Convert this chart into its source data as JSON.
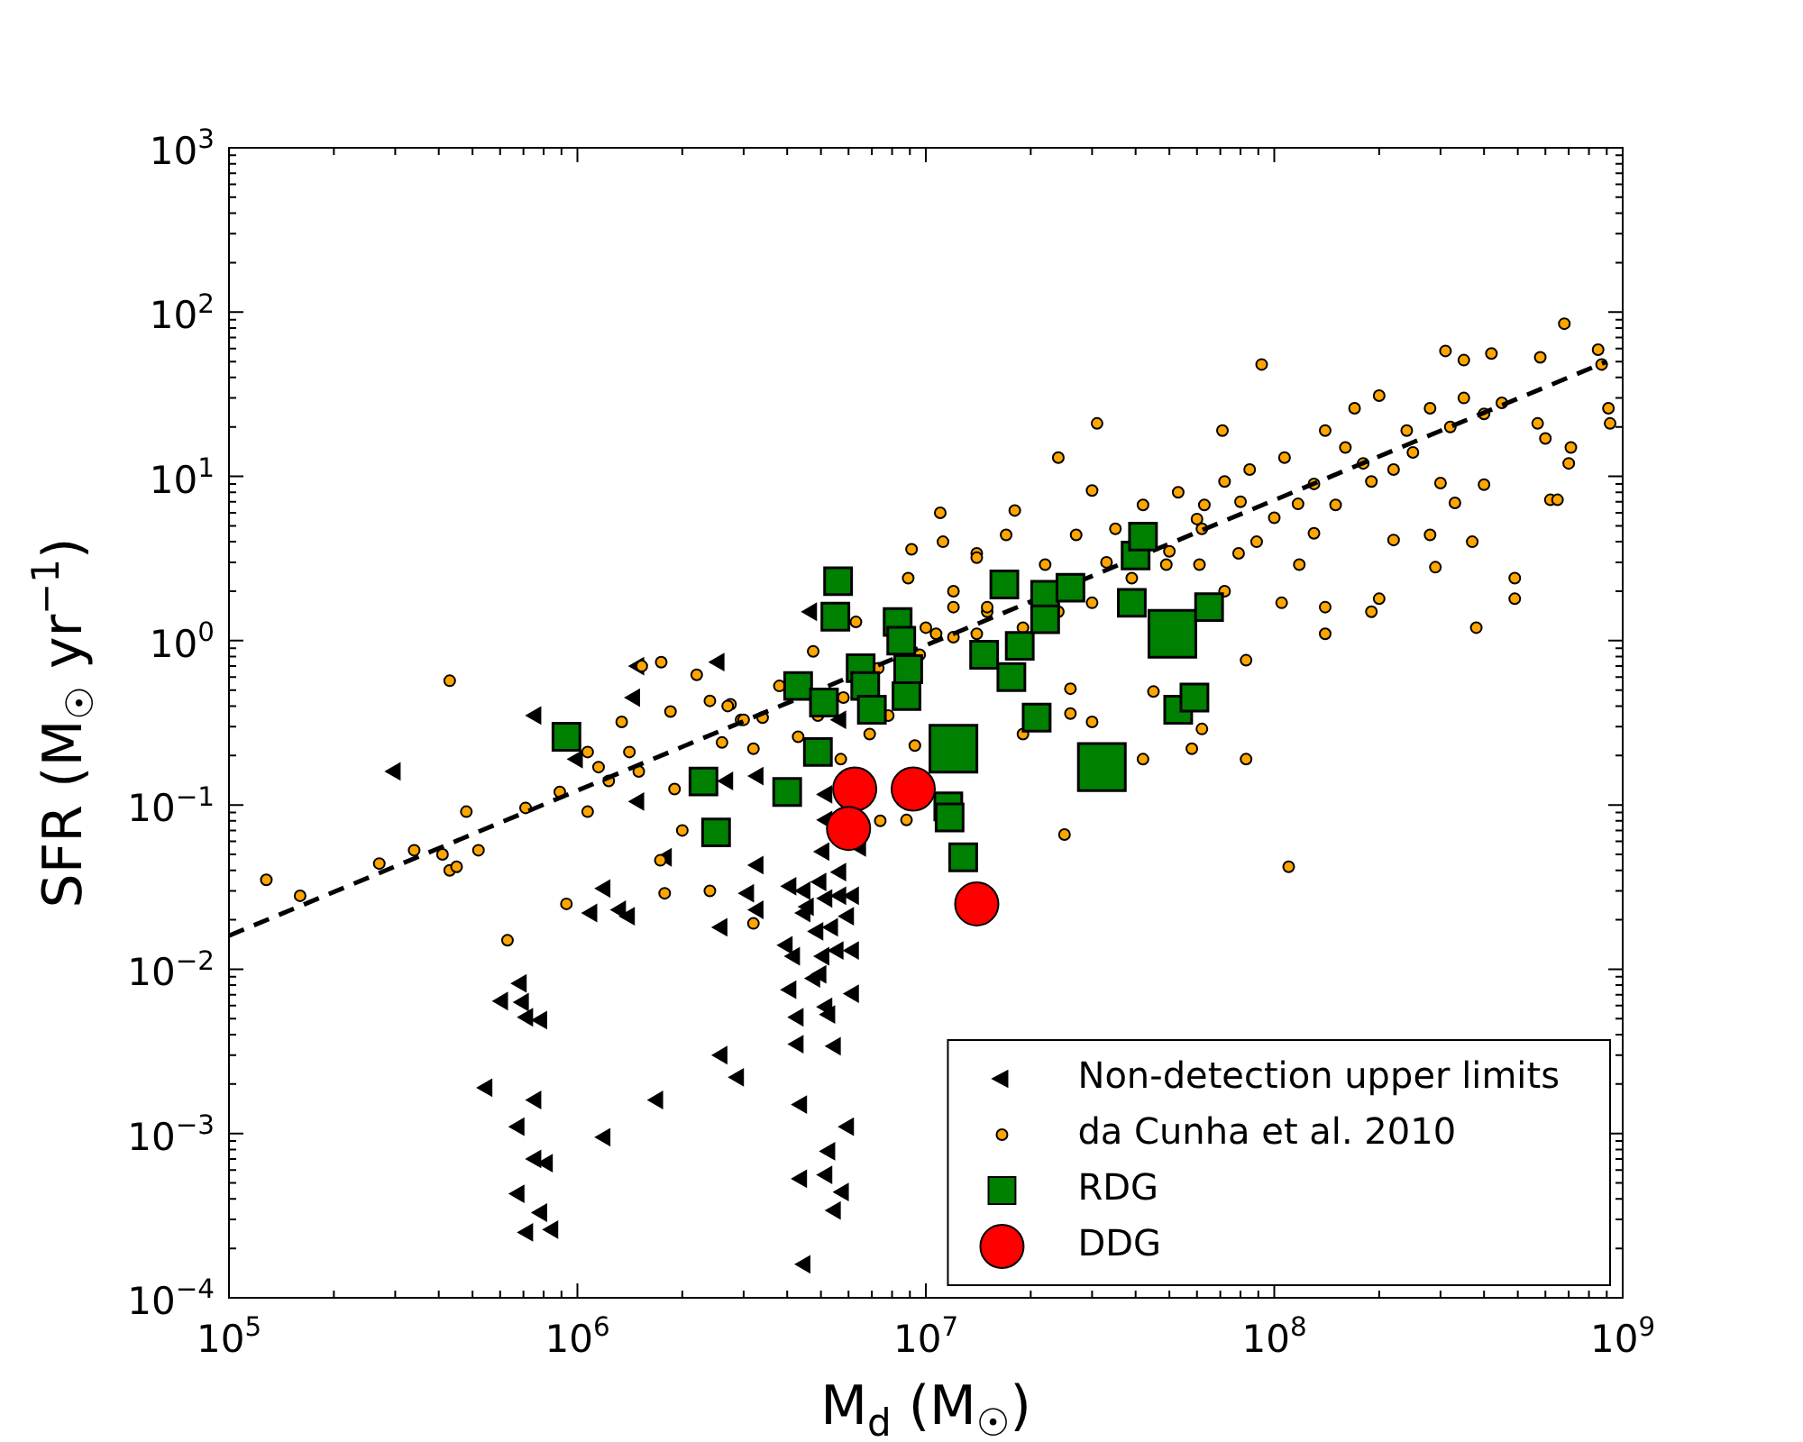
{
  "chart_data": {
    "type": "scatter",
    "xlabel": "M$_{d}$ (M$_{☉}$)",
    "ylabel": "SFR (M$_{☉}$ yr$^{−1}$)",
    "log": "xy",
    "grid": false,
    "legend": "bottom right",
    "xlim": [
      100000.0,
      1000000000.0
    ],
    "ylim": [
      0.0001,
      1000.0
    ],
    "xticks": [
      {
        "value": 100000.0,
        "label": "10$^{5}$"
      },
      {
        "value": 200000.0,
        "label": null
      },
      {
        "value": 300000.0,
        "label": null
      },
      {
        "value": 400000.0,
        "label": null
      },
      {
        "value": 500000.0,
        "label": null
      },
      {
        "value": 600000.0,
        "label": null
      },
      {
        "value": 700000.0,
        "label": null
      },
      {
        "value": 800000.0,
        "label": null
      },
      {
        "value": 900000.0,
        "label": null
      },
      {
        "value": 1000000.0,
        "label": "10$^{6}$"
      },
      {
        "value": 2000000.0,
        "label": null
      },
      {
        "value": 3000000.0,
        "label": null
      },
      {
        "value": 4000000.0,
        "label": null
      },
      {
        "value": 5000000.0,
        "label": null
      },
      {
        "value": 6000000.0,
        "label": null
      },
      {
        "value": 7000000.0,
        "label": null
      },
      {
        "value": 8000000.0,
        "label": null
      },
      {
        "value": 9000000.0,
        "label": null
      },
      {
        "value": 10000000.0,
        "label": "10$^{7}$"
      },
      {
        "value": 20000000.0,
        "label": null
      },
      {
        "value": 30000000.0,
        "label": null
      },
      {
        "value": 40000000.0,
        "label": null
      },
      {
        "value": 50000000.0,
        "label": null
      },
      {
        "value": 60000000.0,
        "label": null
      },
      {
        "value": 70000000.0,
        "label": null
      },
      {
        "value": 80000000.0,
        "label": null
      },
      {
        "value": 90000000.0,
        "label": null
      },
      {
        "value": 100000000.0,
        "label": "10$^{8}$"
      },
      {
        "value": 200000000.0,
        "label": null
      },
      {
        "value": 300000000.0,
        "label": null
      },
      {
        "value": 400000000.0,
        "label": null
      },
      {
        "value": 500000000.0,
        "label": null
      },
      {
        "value": 600000000.0,
        "label": null
      },
      {
        "value": 700000000.0,
        "label": null
      },
      {
        "value": 800000000.0,
        "label": null
      },
      {
        "value": 900000000.0,
        "label": null
      },
      {
        "value": 1000000000.0,
        "label": "10$^{9}$"
      }
    ],
    "yticks": [
      {
        "value": 0.0001,
        "label": "10$^{−4}$"
      },
      {
        "value": 0.0002,
        "label": null
      },
      {
        "value": 0.0003,
        "label": null
      },
      {
        "value": 0.0004,
        "label": null
      },
      {
        "value": 0.0005,
        "label": null
      },
      {
        "value": 0.0006,
        "label": null
      },
      {
        "value": 0.0007,
        "label": null
      },
      {
        "value": 0.0008,
        "label": null
      },
      {
        "value": 0.0009,
        "label": null
      },
      {
        "value": 0.001,
        "label": "10$^{−3}$"
      },
      {
        "value": 0.002,
        "label": null
      },
      {
        "value": 0.003,
        "label": null
      },
      {
        "value": 0.004,
        "label": null
      },
      {
        "value": 0.005,
        "label": null
      },
      {
        "value": 0.006,
        "label": null
      },
      {
        "value": 0.007,
        "label": null
      },
      {
        "value": 0.008,
        "label": null
      },
      {
        "value": 0.009,
        "label": null
      },
      {
        "value": 0.01,
        "label": "10$^{−2}$"
      },
      {
        "value": 0.02,
        "label": null
      },
      {
        "value": 0.03,
        "label": null
      },
      {
        "value": 0.04,
        "label": null
      },
      {
        "value": 0.05,
        "label": null
      },
      {
        "value": 0.06,
        "label": null
      },
      {
        "value": 0.07,
        "label": null
      },
      {
        "value": 0.08,
        "label": null
      },
      {
        "value": 0.09,
        "label": null
      },
      {
        "value": 0.1,
        "label": "10$^{−1}$"
      },
      {
        "value": 0.2,
        "label": null
      },
      {
        "value": 0.3,
        "label": null
      },
      {
        "value": 0.4,
        "label": null
      },
      {
        "value": 0.5,
        "label": null
      },
      {
        "value": 0.6,
        "label": null
      },
      {
        "value": 0.7,
        "label": null
      },
      {
        "value": 0.8,
        "label": null
      },
      {
        "value": 0.9,
        "label": null
      },
      {
        "value": 1,
        "label": "10$^{0}$"
      },
      {
        "value": 2,
        "label": null
      },
      {
        "value": 3,
        "label": null
      },
      {
        "value": 4,
        "label": null
      },
      {
        "value": 5,
        "label": null
      },
      {
        "value": 6,
        "label": null
      },
      {
        "value": 7,
        "label": null
      },
      {
        "value": 8,
        "label": null
      },
      {
        "value": 9,
        "label": null
      },
      {
        "value": 10,
        "label": "10$^{1}$"
      },
      {
        "value": 20,
        "label": null
      },
      {
        "value": 30,
        "label": null
      },
      {
        "value": 40,
        "label": null
      },
      {
        "value": 50,
        "label": null
      },
      {
        "value": 60,
        "label": null
      },
      {
        "value": 70,
        "label": null
      },
      {
        "value": 80,
        "label": null
      },
      {
        "value": 90,
        "label": null
      },
      {
        "value": 100,
        "label": "10$^{2}$"
      },
      {
        "value": 200,
        "label": null
      },
      {
        "value": 300,
        "label": null
      },
      {
        "value": 400,
        "label": null
      },
      {
        "value": 500,
        "label": null
      },
      {
        "value": 600,
        "label": null
      },
      {
        "value": 700,
        "label": null
      },
      {
        "value": 800,
        "label": null
      },
      {
        "value": 900,
        "label": null
      },
      {
        "value": 1000,
        "label": "10$^{3}$"
      }
    ],
    "series": [
      {
        "name": "Non-detection upper limits",
        "marker": "triangle",
        "color": "#000000",
        "x": [
          300000.0,
          760000.0,
          2550000.0,
          1460000.0,
          1500000.0,
          4700000.0,
          1000000.0,
          1500000.0,
          2700000.0,
          3300000.0,
          1800000.0,
          1200000.0,
          1330000.0,
          1410000.0,
          1100000.0,
          3300000.0,
          3100000.0,
          3300000.0,
          2600000.0,
          4100000.0,
          4500000.0,
          5000000.0,
          5700000.0,
          5200000.0,
          5700000.0,
          6200000.0,
          4600000.0,
          4500000.0,
          6000000.0,
          4900000.0,
          5400000.0,
          4000000.0,
          4200000.0,
          5100000.0,
          5600000.0,
          6200000.0,
          5000000.0,
          4800000.0,
          4100000.0,
          6200000.0,
          5200000.0,
          4300000.0,
          5300000.0,
          4300000.0,
          5500000.0,
          2600000.0,
          2900000.0,
          690000.0,
          610000.0,
          700000.0,
          720000.0,
          790000.0,
          550000.0,
          760000.0,
          1700000.0,
          4400000.0,
          6000000.0,
          1200000.0,
          680000.0,
          760000.0,
          820000.0,
          5300000.0,
          5200000.0,
          4400000.0,
          5800000.0,
          680000.0,
          790000.0,
          5500000.0,
          720000.0,
          850000.0,
          4500000.0,
          5700000.0,
          6500000.0,
          5200000.0,
          5100000.0,
          5200000.0
        ],
        "values": [
          0.16,
          0.35,
          0.74,
          0.45,
          0.7,
          1.5,
          0.19,
          0.105,
          0.14,
          0.15,
          0.048,
          0.031,
          0.023,
          0.021,
          0.022,
          0.043,
          0.029,
          0.023,
          0.018,
          0.032,
          0.03,
          0.034,
          0.039,
          0.027,
          0.028,
          0.028,
          0.024,
          0.022,
          0.021,
          0.017,
          0.018,
          0.014,
          0.012,
          0.012,
          0.013,
          0.013,
          0.0093,
          0.0088,
          0.0075,
          0.0071,
          0.0059,
          0.0051,
          0.0053,
          0.0035,
          0.0034,
          0.003,
          0.0022,
          0.0082,
          0.0064,
          0.0063,
          0.0051,
          0.0049,
          0.0019,
          0.0016,
          0.0016,
          0.0015,
          0.0011,
          0.00095,
          0.0011,
          0.0007,
          0.00066,
          0.00078,
          0.00056,
          0.00053,
          0.00044,
          0.00043,
          0.00033,
          0.00034,
          0.00025,
          0.00026,
          0.00016,
          0.33,
          0.055,
          0.116,
          0.052,
          0.081
        ]
      },
      {
        "name": "da Cunha et al. 2010",
        "marker": "circle",
        "color": "#ffa500",
        "x": [
          128000.0,
          160000.0,
          270000.0,
          340000.0,
          430000.0,
          410000.0,
          450000.0,
          480000.0,
          520000.0,
          710000.0,
          890000.0,
          1070000.0,
          430000.0,
          630000.0,
          930000.0,
          1070000.0,
          1150000.0,
          1230000.0,
          1340000.0,
          1410000.0,
          1500000.0,
          1530000.0,
          1740000.0,
          1850000.0,
          1900000.0,
          2000000.0,
          1730000.0,
          1780000.0,
          2400000.0,
          3200000.0,
          2200000.0,
          2400000.0,
          2750000.0,
          2950000.0,
          3200000.0,
          3400000.0,
          2600000.0,
          4300000.0,
          6900000.0,
          7400000.0,
          8800000.0,
          4750000.0,
          6300000.0,
          9100000.0,
          8900000.0,
          680000000.0,
          850000000.0,
          910000000.0,
          920000000.0,
          870000000.0,
          580000000.0,
          420000000.0,
          310000000.0,
          350000000.0,
          570000000.0,
          600000000.0,
          710000000.0,
          700000000.0,
          620000000.0,
          650000000.0,
          490000000.0,
          490000000.0,
          380000000.0,
          370000000.0,
          400000000.0,
          330000000.0,
          290000000.0,
          280000000.0,
          300000000.0,
          220000000.0,
          200000000.0,
          190000000.0,
          140000000.0,
          140000000.0,
          105000000.0,
          92000000.0,
          83000000.0,
          83000000.0,
          62000000.0,
          58000000.0,
          45000000.0,
          42000000.0,
          30000000.0,
          26000000.0,
          26000000.0,
          31000000.0,
          24000000.0,
          30000000.0,
          18000000.0,
          11000000.0,
          11200000.0,
          14000000.0,
          19000000.0,
          9300000.0,
          22000000.0,
          27000000.0,
          35000000.0,
          42000000.0,
          53000000.0,
          62000000.0,
          72000000.0,
          85000000.0,
          107000000.0,
          117000000.0,
          140000000.0,
          160000000.0,
          170000000.0,
          200000000.0,
          220000000.0,
          240000000.0,
          280000000.0,
          320000000.0,
          400000000.0,
          450000000.0,
          100000000.0,
          79000000.0,
          61000000.0,
          49000000.0,
          39000000.0,
          30000000.0,
          24000000.0,
          19000000.0,
          15000000.0,
          12000000.0,
          10000000.0,
          63000000.0,
          118000000.0,
          150000000.0,
          190000000.0,
          89000000.0,
          14000000.0,
          12000000.0,
          15000000.0,
          10700000.0,
          9600000.0,
          7300000.0,
          5800000.0,
          4900000.0,
          3800000.0,
          3000000.0,
          2700000.0,
          71000000.0,
          12000000.0,
          14000000.0,
          17000000.0,
          7800000.0,
          5700000.0,
          25000000.0,
          72000000.0,
          110000000.0,
          50000000.0,
          60000000.0,
          80000000.0,
          130000000.0,
          180000000.0,
          250000000.0,
          350000000.0,
          33000000.0,
          130000000.0
        ],
        "values": [
          0.035,
          0.028,
          0.044,
          0.053,
          0.04,
          0.05,
          0.042,
          0.091,
          0.053,
          0.096,
          0.12,
          0.091,
          0.57,
          0.015,
          0.025,
          0.21,
          0.17,
          0.14,
          0.32,
          0.21,
          0.16,
          0.7,
          0.74,
          0.37,
          0.125,
          0.07,
          0.046,
          0.029,
          0.03,
          0.019,
          0.62,
          0.43,
          0.41,
          0.33,
          0.22,
          0.34,
          0.24,
          0.26,
          0.27,
          0.08,
          0.081,
          0.86,
          1.3,
          3.6,
          2.4,
          85,
          59,
          26,
          21,
          48,
          53,
          56,
          58,
          51,
          21,
          17,
          15,
          12,
          7.2,
          7.2,
          2.4,
          1.8,
          1.2,
          4.0,
          8.9,
          6.9,
          2.8,
          4.4,
          9.1,
          4.1,
          1.8,
          1.5,
          1.1,
          1.6,
          1.7,
          48,
          0.76,
          0.19,
          0.29,
          0.22,
          0.49,
          0.19,
          0.32,
          0.51,
          0.36,
          21,
          13,
          8.2,
          6.2,
          6.0,
          4.0,
          3.4,
          0.27,
          0.23,
          2.9,
          4.4,
          4.8,
          6.7,
          8.0,
          4.8,
          9.3,
          11,
          13,
          6.8,
          19,
          15,
          26,
          31,
          11,
          19,
          26,
          20,
          24,
          28,
          5.6,
          3.4,
          2.9,
          2.9,
          2.4,
          1.7,
          1.5,
          1.2,
          1.5,
          1.05,
          1.2,
          6.7,
          2.9,
          6.7,
          9.3,
          4.0,
          1.1,
          1.6,
          1.6,
          1.1,
          0.82,
          0.68,
          0.45,
          0.35,
          0.53,
          0.33,
          0.4,
          19,
          2.0,
          3.2,
          4.4,
          0.35,
          0.19,
          0.066,
          2.0,
          0.042,
          3.5,
          5.5,
          7,
          9,
          12,
          14,
          30,
          3,
          4.5
        ]
      },
      {
        "type": "line",
        "marker": "none",
        "line_style": "dashed",
        "color": "#000000",
        "x": [
          100000.0,
          900000000.0
        ],
        "values": [
          0.016,
          50
        ]
      },
      {
        "name": "RDG",
        "type": "bubble",
        "marker": "square",
        "color": "#008000",
        "x": [
          930000.0,
          2300000.0,
          2500000.0,
          4000000.0,
          4300000.0,
          4900000.0,
          5100000.0,
          5500000.0,
          5600000.0,
          6500000.0,
          6700000.0,
          7000000.0,
          8300000.0,
          8500000.0,
          8800000.0,
          8900000.0,
          12000000.0,
          11600000.0,
          11700000.0,
          12800000.0,
          14700000.0,
          16800000.0,
          17600000.0,
          18600000.0,
          20800000.0,
          22000000.0,
          22000000.0,
          26000000.0,
          32000000.0,
          39000000.0,
          40000000.0,
          42000000.0,
          51000000.0,
          53000000.0,
          59000000.0,
          65000000.0
        ],
        "values": [
          0.26,
          0.139,
          0.068,
          0.12,
          0.53,
          0.21,
          0.42,
          1.4,
          2.3,
          0.68,
          0.53,
          0.38,
          1.3,
          1.0,
          0.46,
          0.67,
          0.22,
          0.098,
          0.084,
          0.048,
          0.82,
          2.2,
          0.6,
          0.93,
          0.34,
          1.9,
          1.35,
          2.1,
          0.17,
          1.7,
          3.3,
          4.3,
          1.1,
          0.38,
          0.45,
          1.6
        ],
        "sizes": [
          0.33,
          0.33,
          0.33,
          0.33,
          0.33,
          0.33,
          0.33,
          0.33,
          0.33,
          0.33,
          0.33,
          0.33,
          0.33,
          0.33,
          0.33,
          0.33,
          1,
          0.33,
          0.33,
          0.33,
          0.33,
          0.33,
          0.33,
          0.33,
          0.33,
          0.33,
          0.33,
          0.33,
          1,
          0.33,
          0.33,
          0.33,
          1,
          0.33,
          0.33,
          0.33
        ]
      },
      {
        "name": "DDG",
        "marker": "circle",
        "color": "#ff0000",
        "x": [
          6250000.0,
          6000000.0,
          9200000.0,
          14000000.0
        ],
        "values": [
          0.125,
          0.072,
          0.125,
          0.025
        ]
      }
    ]
  }
}
